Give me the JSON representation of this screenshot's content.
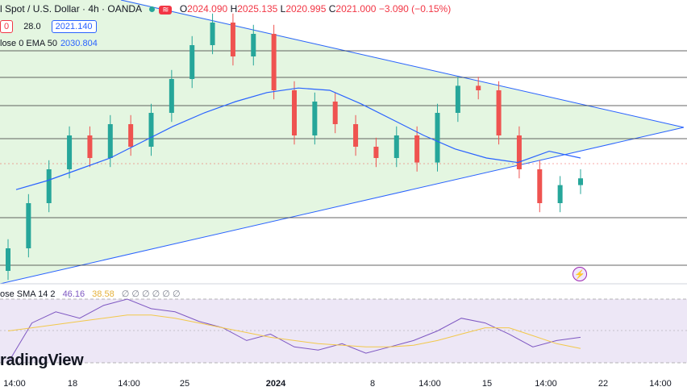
{
  "header": {
    "symbol": "l Spot / U.S. Dollar · 4h · OANDA",
    "wavy_badge": "≋",
    "ohlc": [
      {
        "label": "O",
        "value": "2024.090"
      },
      {
        "label": "H",
        "value": "2025.135"
      },
      {
        "label": "L",
        "value": "2020.995"
      },
      {
        "label": "C",
        "value": "2021.000"
      },
      {
        "label": "",
        "value": "−3.090 (−0.15%)"
      }
    ],
    "row2": {
      "left_box": "0",
      "mid": "28.0",
      "price_box": "2021.140"
    },
    "ema_label": "lose 0 EMA 50",
    "ema_value": "2030.804"
  },
  "rsi_panel": {
    "label": "ose SMA 14 2",
    "value1": "46.16",
    "value2": "38.58",
    "extras": "∅ ∅ ∅ ∅ ∅ ∅"
  },
  "watermark": "radingView",
  "x_axis": [
    {
      "label": "14:00",
      "bold": false
    },
    {
      "label": "18",
      "bold": false
    },
    {
      "label": "14:00",
      "bold": false
    },
    {
      "label": "25",
      "bold": false
    },
    {
      "label": "2024",
      "bold": true
    },
    {
      "label": "8",
      "bold": false
    },
    {
      "label": "14:00",
      "bold": false
    },
    {
      "label": "15",
      "bold": false
    },
    {
      "label": "14:00",
      "bold": false
    },
    {
      "label": "22",
      "bold": false
    },
    {
      "label": "14:00",
      "bold": false
    }
  ],
  "colors": {
    "up": "#26a69a",
    "down": "#ef5350",
    "ema": "#2962ff",
    "triangle_fill": "#e3f5df",
    "rsi": "#7e57c2",
    "rsi_ma": "#f2c84b"
  },
  "chart_data": {
    "type": "line",
    "title": "",
    "series": [
      {
        "name": "EMA 50",
        "values": [
          2016,
          2020,
          2025,
          2030,
          2037,
          2044,
          2050,
          2055,
          2059,
          2061,
          2060,
          2054,
          2047,
          2040,
          2034,
          2030,
          2028,
          2033,
          2030
        ]
      }
    ],
    "candles_close": [
      1990,
      2010,
      2025,
      2040,
      2030,
      2045,
      2035,
      2050,
      2065,
      2080,
      2090,
      2075,
      2085,
      2060,
      2040,
      2055,
      2045,
      2035,
      2030,
      2040,
      2028,
      2050,
      2062,
      2060,
      2040,
      2025,
      2010,
      2018,
      2021
    ],
    "rsi": [
      30,
      55,
      62,
      58,
      66,
      70,
      64,
      62,
      56,
      52,
      44,
      48,
      40,
      38,
      42,
      36,
      40,
      44,
      50,
      58,
      55,
      48,
      40,
      44,
      46
    ],
    "rsi_ma": [
      50,
      52,
      54,
      56,
      58,
      60,
      60,
      58,
      55,
      52,
      49,
      46,
      44,
      42,
      41,
      40,
      40,
      41,
      44,
      48,
      52,
      52,
      47,
      42,
      39
    ],
    "annotations": "triangle pattern with horizontal support/resistance lines",
    "grid": true
  }
}
